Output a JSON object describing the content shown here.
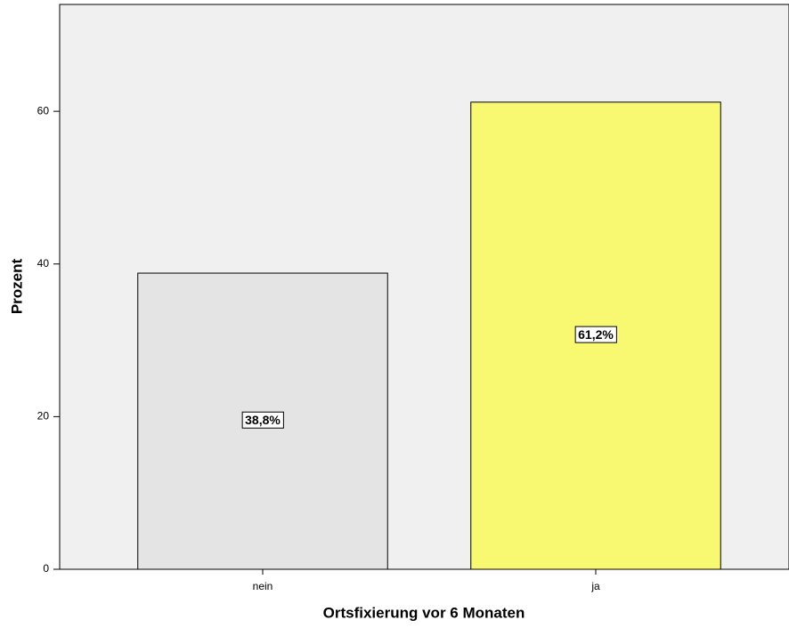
{
  "chart_data": {
    "type": "bar",
    "xlabel": "Ortsfixierung vor 6 Monaten",
    "ylabel": "Prozent",
    "categories": [
      "nein",
      "ja"
    ],
    "values": [
      38.8,
      61.2
    ],
    "value_labels": [
      "38,8%",
      "61,2%"
    ],
    "colors": [
      "#e4e4e4",
      "#f9f871"
    ],
    "ylim": [
      0,
      74
    ],
    "yticks": [
      0,
      20,
      40,
      60
    ]
  }
}
